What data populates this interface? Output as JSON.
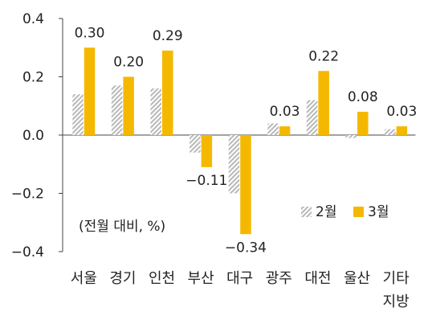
{
  "chart_data": {
    "type": "bar",
    "title": "",
    "xlabel": "",
    "ylabel": "",
    "unit_note": "(전월 대비, %)",
    "ylim": [
      -0.4,
      0.4
    ],
    "yticks": [
      "0.4",
      "0.2",
      "0.0",
      "-0.2",
      "-0.4"
    ],
    "ytick_values": [
      0.4,
      0.2,
      0.0,
      -0.2,
      -0.4
    ],
    "categories": [
      "서울",
      "경기",
      "인천",
      "부산",
      "대구",
      "광주",
      "대전",
      "울산",
      "기타 지방"
    ],
    "category_lines": [
      [
        "서울"
      ],
      [
        "경기"
      ],
      [
        "인천"
      ],
      [
        "부산"
      ],
      [
        "대구"
      ],
      [
        "광주"
      ],
      [
        "대전"
      ],
      [
        "울산"
      ],
      [
        "기타",
        "지방"
      ]
    ],
    "series": [
      {
        "name": "2월",
        "values": [
          0.14,
          0.17,
          0.16,
          -0.06,
          -0.2,
          0.04,
          0.12,
          -0.01,
          0.02
        ],
        "color": "#b8b8b8",
        "pattern": "hatch"
      },
      {
        "name": "3월",
        "values": [
          0.3,
          0.2,
          0.29,
          -0.11,
          -0.34,
          0.03,
          0.22,
          0.08,
          0.03
        ],
        "color": "#f5b800",
        "pattern": "solid"
      }
    ],
    "data_labels": [
      "0.30",
      "0.20",
      "0.29",
      "−0.11",
      "−0.34",
      "0.03",
      "0.22",
      "0.08",
      "0.03"
    ],
    "legend_position": "bottom-right",
    "grid": false
  }
}
